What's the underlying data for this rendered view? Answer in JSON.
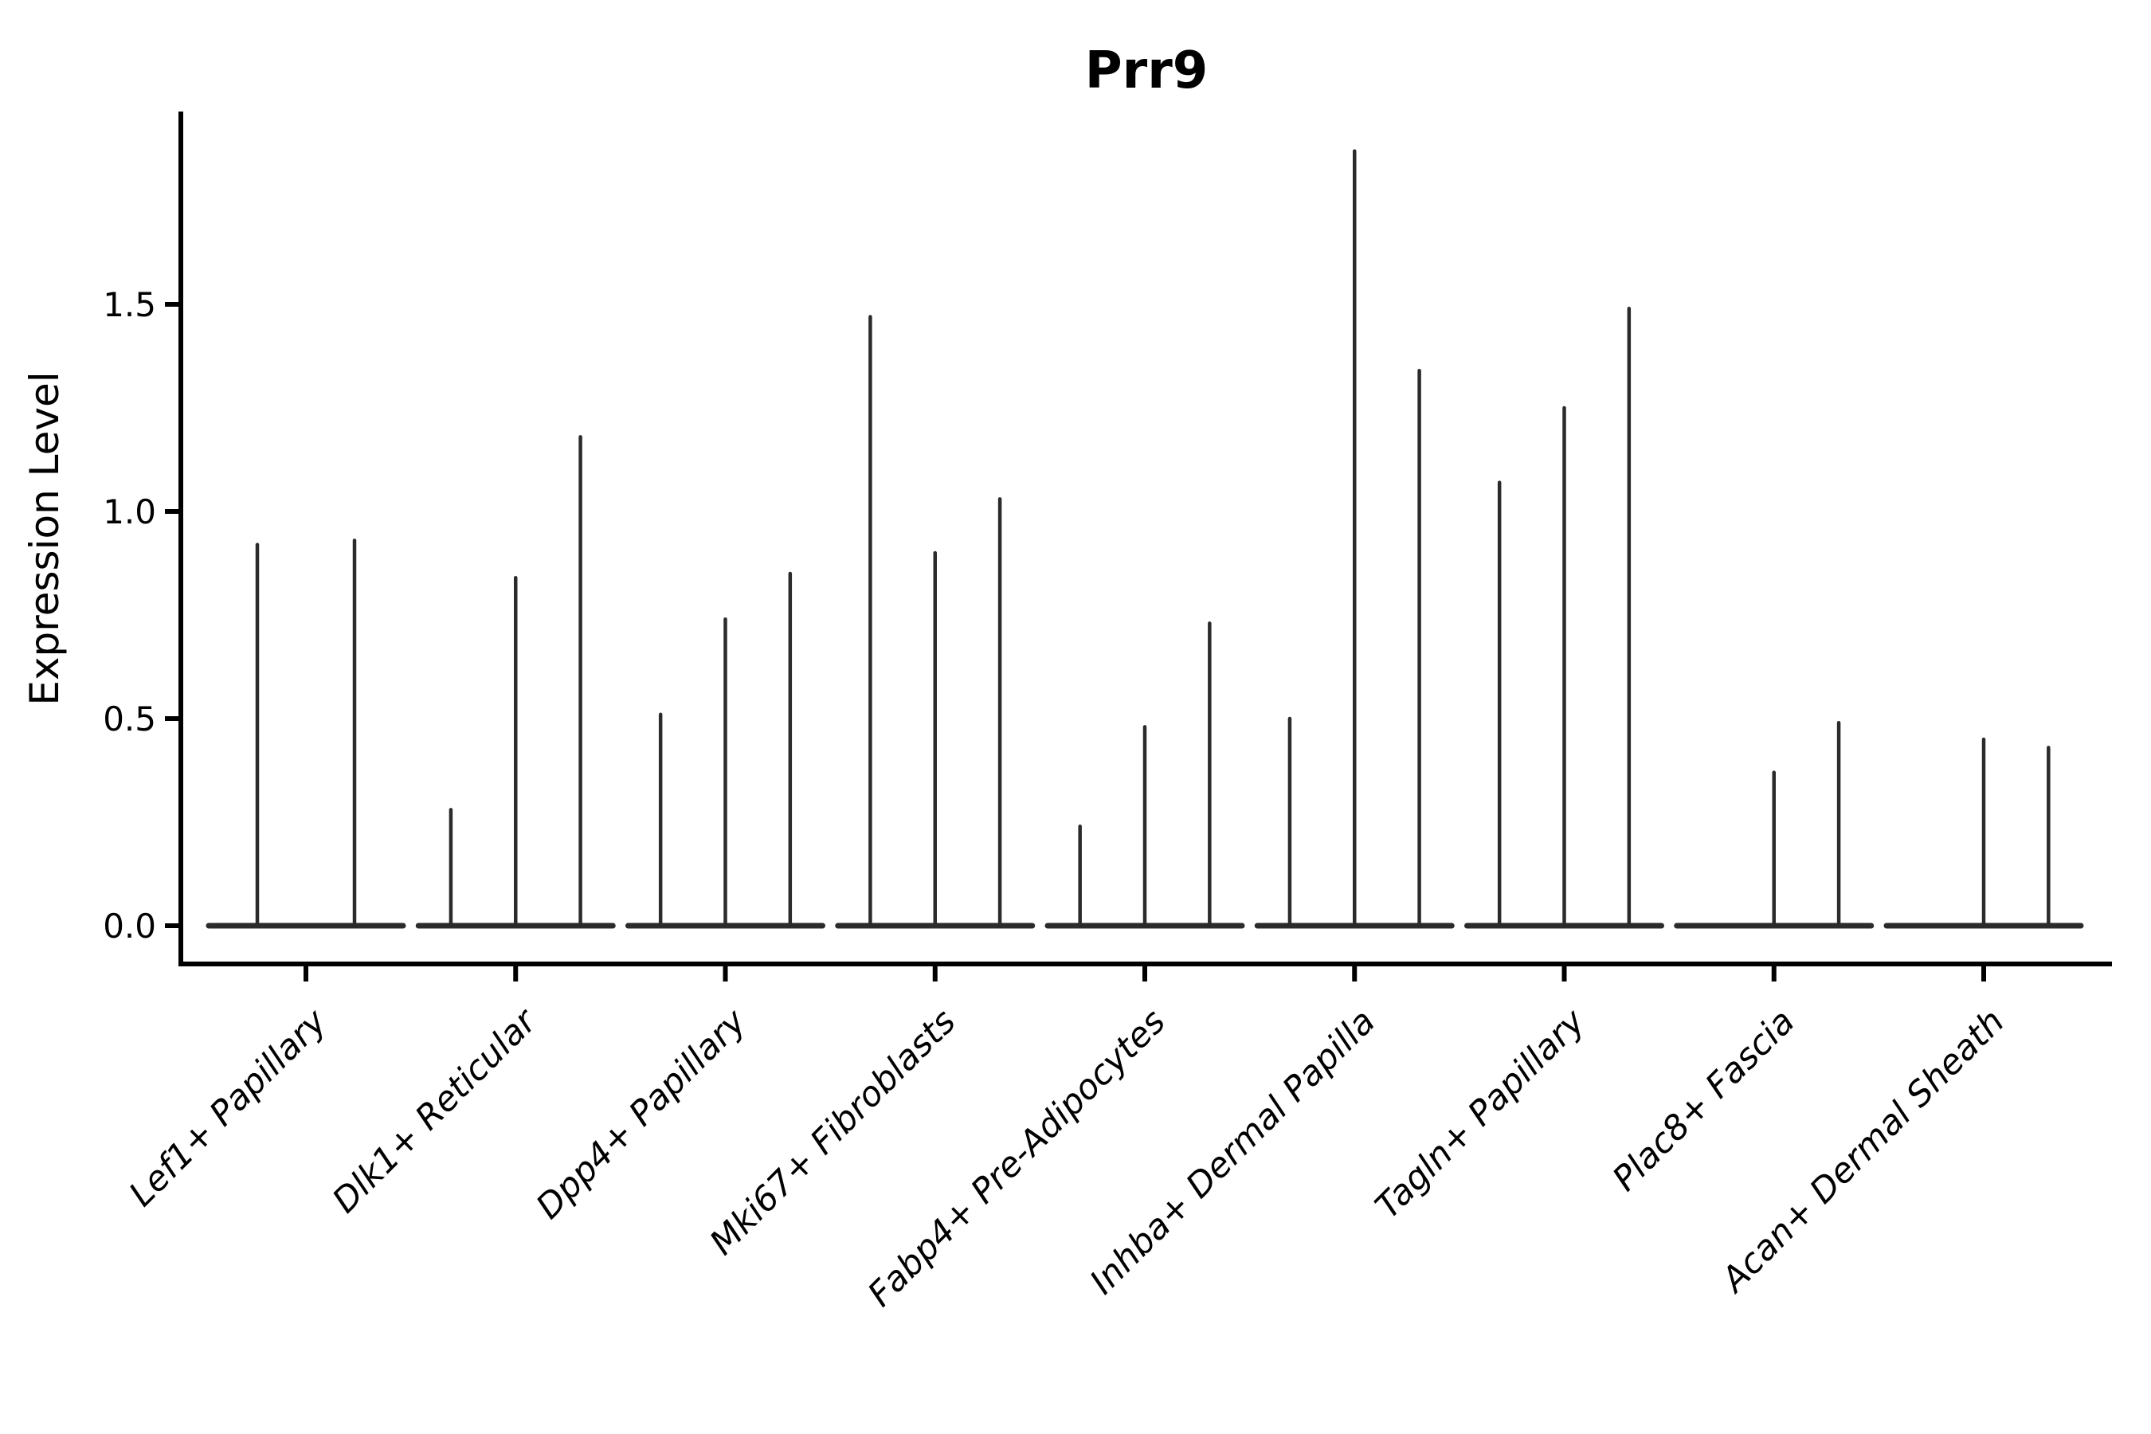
{
  "title": "Prr9",
  "axes": {
    "ylabel": "Expression Level",
    "ytick_labels": [
      "0.0",
      "0.5",
      "1.0",
      "1.5"
    ]
  },
  "colors": {
    "violin_stroke": "#2b2b2b",
    "axis": "#000000",
    "background": "#ffffff"
  },
  "chart_data": {
    "type": "violin",
    "title": "Prr9",
    "xlabel": "",
    "ylabel": "Expression Level",
    "ylim": [
      0.0,
      1.96
    ],
    "yticks": [
      0.0,
      0.5,
      1.0,
      1.5
    ],
    "grid": false,
    "legend": "none",
    "style_note": "Seurat-style violin plot; each violin collapses to a wide flat base at expression 0 with a thin vertical density tail reaching the maximum expression value; violins with max 0 show only the flat base",
    "categories": [
      "Lef1+ Papillary",
      "Dlk1+ Reticular",
      "Dpp4+ Papillary",
      "Mki67+ Fibroblasts",
      "Fabp4+ Pre-Adipocytes",
      "Inhba+ Dermal Papilla",
      "Tagln+ Papillary",
      "Plac8+ Fascia",
      "Acan+ Dermal Sheath"
    ],
    "groups": [
      {
        "category": "Lef1+ Papillary",
        "violin_max_values": [
          0.92,
          0.93
        ]
      },
      {
        "category": "Dlk1+ Reticular",
        "violin_max_values": [
          0.28,
          0.84,
          1.18
        ]
      },
      {
        "category": "Dpp4+ Papillary",
        "violin_max_values": [
          0.51,
          0.74,
          0.85
        ]
      },
      {
        "category": "Mki67+ Fibroblasts",
        "violin_max_values": [
          1.47,
          0.9,
          1.03
        ]
      },
      {
        "category": "Fabp4+ Pre-Adipocytes",
        "violin_max_values": [
          0.24,
          0.48,
          0.73
        ]
      },
      {
        "category": "Inhba+ Dermal Papilla",
        "violin_max_values": [
          0.5,
          1.87,
          1.34
        ]
      },
      {
        "category": "Tagln+ Papillary",
        "violin_max_values": [
          1.07,
          1.25,
          1.49
        ]
      },
      {
        "category": "Plac8+ Fascia",
        "violin_max_values": [
          0.0,
          0.37,
          0.49
        ]
      },
      {
        "category": "Acan+ Dermal Sheath",
        "violin_max_values": [
          0.0,
          0.45,
          0.43
        ]
      }
    ]
  }
}
